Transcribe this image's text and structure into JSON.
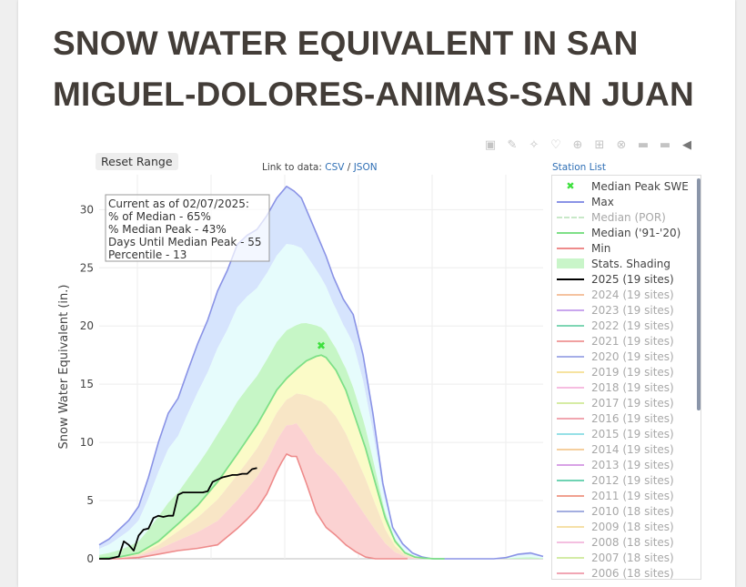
{
  "page": {
    "title": "SNOW WATER EQUIVALENT IN SAN MIGUEL-DOLORES-ANIMAS-SAN JUAN"
  },
  "toolbar": {
    "reset_label": "Reset Range",
    "link_prefix": "Link to data:",
    "csv_label": "CSV",
    "separator": "/",
    "json_label": "JSON",
    "station_list_label": "Station List"
  },
  "modebar_icons": [
    "camera-icon",
    "zoom-icon",
    "pan-icon",
    "lasso-icon",
    "zoom-in-icon",
    "zoom-out-icon",
    "autoscale-icon",
    "reset-axes-icon",
    "spike-icon",
    "hover-icon"
  ],
  "annotation": {
    "line1": "Current as of 02/07/2025:",
    "line2": "% of Median - 65%",
    "line3": "% Median Peak - 43%",
    "line4": "Days Until Median Peak - 55",
    "line5": "Percentile - 13"
  },
  "colors": {
    "max": "#8a93e6",
    "median_91_20": "#7ee087",
    "min": "#ee8b8b",
    "current_2025": "#000000",
    "median_peak_marker": "#3ee03e",
    "band_outer": "#d6e4fd",
    "band_inner": "#e6fcfc",
    "band_green": "#c6f6c6",
    "band_yellow": "#fbfbc8",
    "band_red": "#fbd2d2"
  },
  "chart_data": {
    "type": "area",
    "title": "SNOW WATER EQUIVALENT IN SAN MIGUEL-DOLORES-ANIMAS-SAN JUAN",
    "ylabel": "Snow Water Equivalent (in.)",
    "xlabel": "",
    "x_days_range": [
      0,
      360
    ],
    "ylim": [
      0,
      33
    ],
    "y_ticks": [
      0,
      5,
      10,
      15,
      20,
      25,
      30
    ],
    "grid": true,
    "legend_position": "right",
    "median_peak": {
      "x": 180,
      "y": 18.3
    },
    "series": [
      {
        "name": "Max",
        "x": [
          0,
          8,
          16,
          24,
          32,
          40,
          48,
          56,
          64,
          72,
          80,
          88,
          96,
          104,
          112,
          120,
          128,
          136,
          144,
          152,
          158,
          164,
          172,
          178,
          184,
          190,
          198,
          206,
          214,
          222,
          230,
          238,
          246,
          254,
          262,
          270,
          280,
          290,
          300,
          310,
          320,
          330,
          340,
          350,
          360
        ],
        "values": [
          1.2,
          1.7,
          2.5,
          3.3,
          4.5,
          7.0,
          10.0,
          12.5,
          13.8,
          16.2,
          18.5,
          20.5,
          23.0,
          24.8,
          27.0,
          27.8,
          28.3,
          29.5,
          31.0,
          32.0,
          31.6,
          31.0,
          29.0,
          27.5,
          26.0,
          24.2,
          22.3,
          21.0,
          17.5,
          12.5,
          6.5,
          2.7,
          1.3,
          0.5,
          0.15,
          0,
          0,
          0,
          0,
          0,
          0,
          0.1,
          0.4,
          0.5,
          0.2
        ]
      },
      {
        "name": "Median ('91-'20)",
        "x": [
          0,
          16,
          32,
          48,
          64,
          80,
          96,
          112,
          128,
          136,
          144,
          152,
          160,
          168,
          176,
          180,
          184,
          192,
          200,
          208,
          216,
          224,
          232,
          240,
          248,
          256,
          264,
          272,
          280
        ],
        "values": [
          0.05,
          0.15,
          0.5,
          1.5,
          3.0,
          4.6,
          6.6,
          9.0,
          11.5,
          13.0,
          14.5,
          15.5,
          16.3,
          17.0,
          17.4,
          17.5,
          17.3,
          16.2,
          14.5,
          12.0,
          9.5,
          6.5,
          3.5,
          1.5,
          0.5,
          0.15,
          0.05,
          0,
          0
        ]
      },
      {
        "name": "Min",
        "x": [
          0,
          16,
          32,
          48,
          64,
          80,
          96,
          112,
          120,
          128,
          136,
          144,
          148,
          152,
          156,
          160,
          168,
          176,
          184,
          192,
          200,
          208,
          216,
          224,
          232,
          240,
          250
        ],
        "values": [
          0,
          0,
          0.1,
          0.4,
          0.7,
          0.9,
          1.2,
          2.6,
          3.4,
          4.3,
          5.6,
          7.5,
          8.3,
          9.0,
          8.8,
          8.8,
          6.5,
          4.0,
          2.7,
          2.0,
          1.2,
          0.6,
          0.15,
          0,
          0,
          0,
          0
        ]
      },
      {
        "name": "2025 (19 sites)",
        "x": [
          0,
          8,
          12,
          16,
          20,
          24,
          28,
          32,
          36,
          40,
          44,
          48,
          52,
          56,
          60,
          64,
          68,
          72,
          76,
          80,
          84,
          88,
          92,
          96,
          100,
          104,
          108,
          112,
          116,
          120,
          124,
          128
        ],
        "values": [
          0,
          0,
          0.1,
          0.2,
          1.5,
          1.2,
          0.7,
          2.0,
          2.5,
          2.6,
          3.5,
          3.7,
          3.6,
          3.7,
          3.7,
          5.5,
          5.7,
          5.7,
          5.7,
          5.7,
          5.7,
          5.8,
          6.6,
          6.8,
          7.0,
          7.1,
          7.2,
          7.2,
          7.3,
          7.3,
          7.7,
          7.8
        ]
      }
    ],
    "annotation": "Current as of 02/07/2025: % of Median - 65% % Median Peak - 43% Days Until Median Peak - 55 Percentile - 13"
  },
  "legend": {
    "items": [
      {
        "label": "Median Peak SWE",
        "kind": "marker",
        "color": "#3ee03e",
        "dim": false
      },
      {
        "label": "Max",
        "kind": "line",
        "color": "#8a93e6",
        "dim": false
      },
      {
        "label": "Median (POR)",
        "kind": "dash",
        "color": "#c8e8c8",
        "dim": true
      },
      {
        "label": "Median ('91-'20)",
        "kind": "line",
        "color": "#7ee087",
        "dim": false
      },
      {
        "label": "Min",
        "kind": "line",
        "color": "#ee8b8b",
        "dim": false
      },
      {
        "label": "Stats. Shading",
        "kind": "box",
        "color": "#c9f5c9",
        "dim": false
      },
      {
        "label": "2025 (19 sites)",
        "kind": "line",
        "color": "#000000",
        "dim": false
      },
      {
        "label": "2024 (19 sites)",
        "kind": "line",
        "color": "#f5c3a0",
        "dim": true
      },
      {
        "label": "2023 (19 sites)",
        "kind": "line",
        "color": "#c9a6ee",
        "dim": true
      },
      {
        "label": "2022 (19 sites)",
        "kind": "line",
        "color": "#7fd6b4",
        "dim": true
      },
      {
        "label": "2021 (19 sites)",
        "kind": "line",
        "color": "#f0a0a0",
        "dim": true
      },
      {
        "label": "2020 (19 sites)",
        "kind": "line",
        "color": "#a6aee8",
        "dim": true
      },
      {
        "label": "2019 (19 sites)",
        "kind": "line",
        "color": "#f6e3a0",
        "dim": true
      },
      {
        "label": "2018 (19 sites)",
        "kind": "line",
        "color": "#f6bde0",
        "dim": true
      },
      {
        "label": "2017 (19 sites)",
        "kind": "line",
        "color": "#d6eca4",
        "dim": true
      },
      {
        "label": "2016 (19 sites)",
        "kind": "line",
        "color": "#f1a6b0",
        "dim": true
      },
      {
        "label": "2015 (19 sites)",
        "kind": "line",
        "color": "#96e0e6",
        "dim": true
      },
      {
        "label": "2014 (19 sites)",
        "kind": "line",
        "color": "#f5cf9e",
        "dim": true
      },
      {
        "label": "2013 (19 sites)",
        "kind": "line",
        "color": "#d8a2e6",
        "dim": true
      },
      {
        "label": "2012 (19 sites)",
        "kind": "line",
        "color": "#6fd3b3",
        "dim": true
      },
      {
        "label": "2011 (19 sites)",
        "kind": "line",
        "color": "#f0a090",
        "dim": true
      },
      {
        "label": "2010 (18 sites)",
        "kind": "line",
        "color": "#a3aee0",
        "dim": true
      },
      {
        "label": "2009 (18 sites)",
        "kind": "line",
        "color": "#f5e0a8",
        "dim": true
      },
      {
        "label": "2008 (18 sites)",
        "kind": "line",
        "color": "#f4bfe0",
        "dim": true
      },
      {
        "label": "2007 (18 sites)",
        "kind": "line",
        "color": "#d4eca6",
        "dim": true
      },
      {
        "label": "2006 (18 sites)",
        "kind": "line",
        "color": "#f1a6b4",
        "dim": true
      }
    ]
  }
}
